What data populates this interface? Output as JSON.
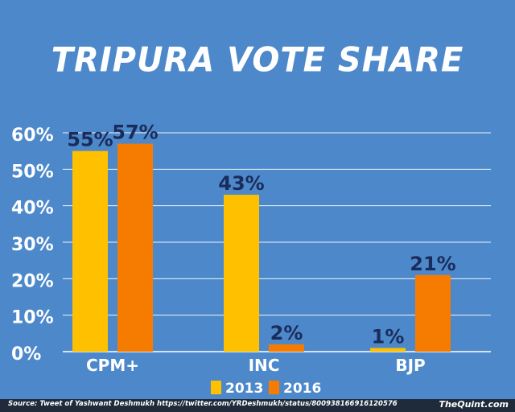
{
  "chart_data": {
    "type": "bar",
    "title": "TRIPURA VOTE SHARE",
    "categories": [
      "CPM+",
      "INC",
      "BJP"
    ],
    "series": [
      {
        "name": "2013",
        "values": [
          55,
          43,
          1
        ],
        "labels": [
          "55%",
          "43%",
          "1%"
        ]
      },
      {
        "name": "2016",
        "values": [
          57,
          2,
          21
        ],
        "labels": [
          "57%",
          "2%",
          "21%"
        ]
      }
    ],
    "ylim": [
      0,
      60
    ],
    "yticks": [
      0,
      10,
      20,
      30,
      40,
      50,
      60
    ],
    "ytick_labels": [
      "0%",
      "10%",
      "20%",
      "30%",
      "40%",
      "50%",
      "60%"
    ],
    "grid": true,
    "legend_position": "bottom-center"
  },
  "colors": {
    "background": "#4d89ca",
    "bar_2013": "#ffc000",
    "bar_2016": "#f57c00",
    "value_label": "#1a2c5b",
    "axis_text": "#ffffff",
    "grid": "#ffffff"
  },
  "footer": {
    "source": "Source: Tweet of Yashwant Deshmukh https://twitter.com/YRDeshmukh/status/800938166916120576",
    "brand": "TheQuint.com"
  }
}
